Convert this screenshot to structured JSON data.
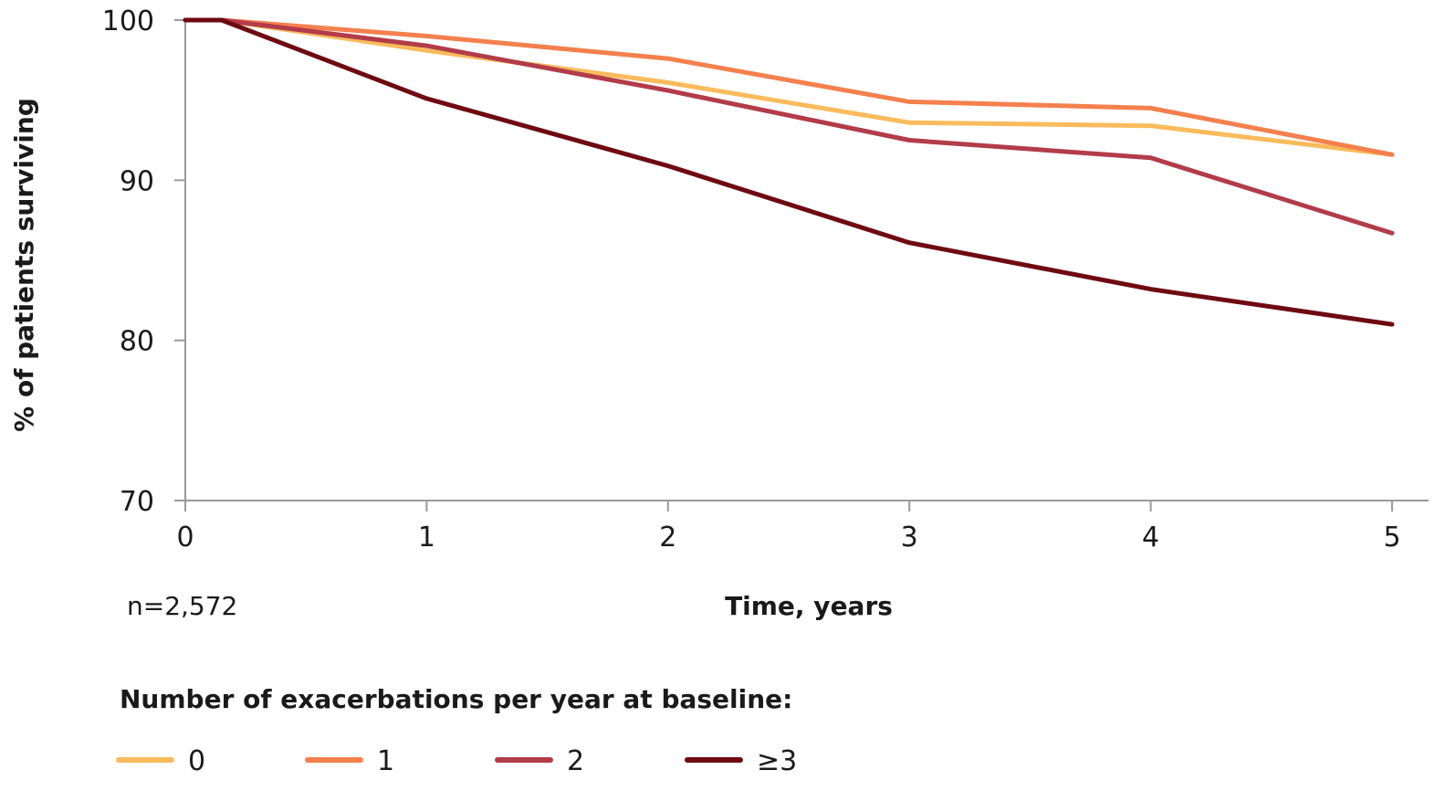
{
  "chart_data": {
    "type": "line",
    "title": "",
    "xlabel": "Time, years",
    "ylabel": "% of patients surviving",
    "xlim": [
      0,
      5
    ],
    "ylim": [
      70,
      100
    ],
    "x_ticks": [
      0,
      1,
      2,
      3,
      4,
      5
    ],
    "y_ticks": [
      70,
      80,
      90,
      100
    ],
    "grid": false,
    "note": "n=2,572",
    "legend": {
      "title": "Number of exacerbations per year at baseline:",
      "placement": "bottom"
    },
    "series": [
      {
        "name": "0",
        "color": "#F9BB5C",
        "x": [
          0,
          0.15,
          1,
          2,
          3,
          4,
          5
        ],
        "y": [
          100,
          100,
          98.1,
          96.1,
          93.6,
          93.4,
          91.6
        ]
      },
      {
        "name": "1",
        "color": "#F4804E",
        "x": [
          0,
          0.15,
          1,
          2,
          3,
          4,
          5
        ],
        "y": [
          100,
          100,
          99.0,
          97.6,
          94.9,
          94.5,
          91.6
        ]
      },
      {
        "name": "2",
        "color": "#B23C4A",
        "x": [
          0,
          0.15,
          1,
          2,
          3,
          4,
          5
        ],
        "y": [
          100,
          100,
          98.4,
          95.6,
          92.5,
          91.4,
          86.7
        ]
      },
      {
        "name": "≥3",
        "color": "#6E0A12",
        "x": [
          0,
          0.15,
          1,
          2,
          3,
          4,
          5
        ],
        "y": [
          100,
          100,
          95.1,
          90.9,
          86.1,
          83.2,
          81.0
        ]
      }
    ]
  }
}
